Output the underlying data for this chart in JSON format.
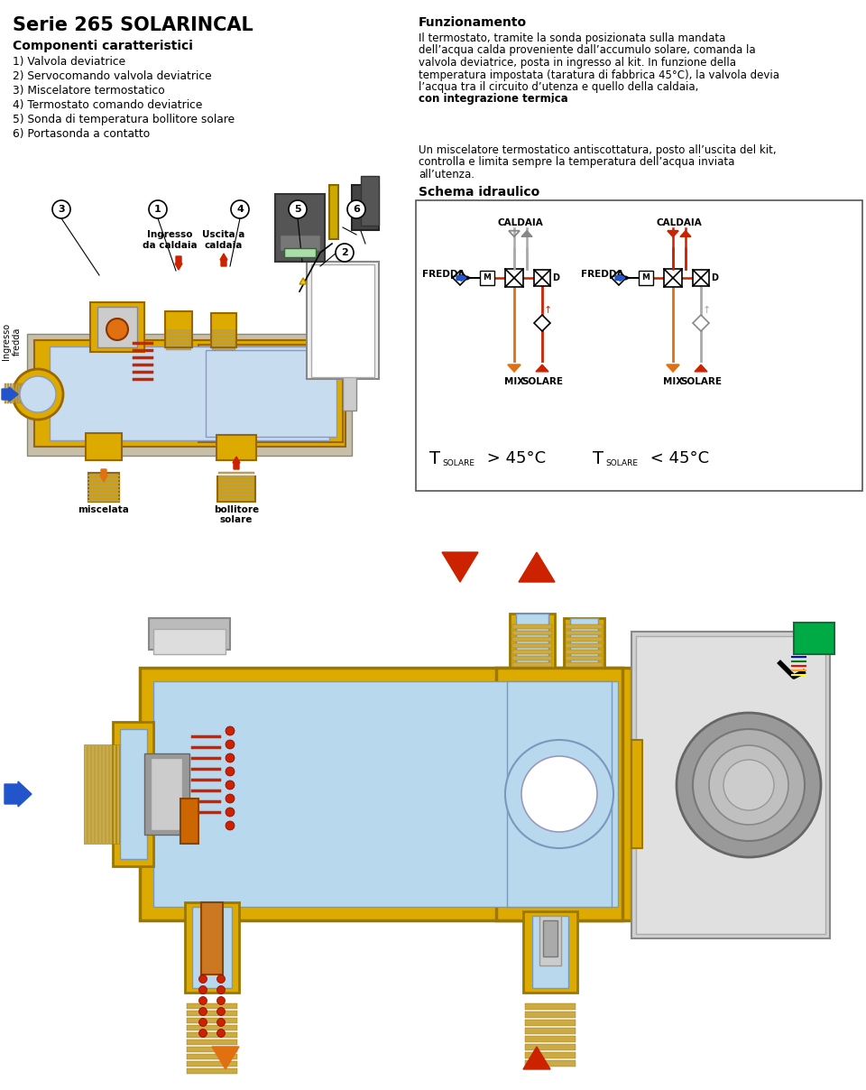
{
  "title": "Serie 265 SOLARINCAL",
  "section1_title": "Componenti caratteristici",
  "components": [
    "1) Valvola deviatrice",
    "2) Servocomando valvola deviatrice",
    "3) Miscelatore termostatico",
    "4) Termostato comando deviatrice",
    "5) Sonda di temperatura bollitore solare",
    "6) Portasonda a contatto"
  ],
  "section2_title": "Funzionamento",
  "funz_lines": [
    "Il termostato, tramite la sonda posizionata sulla mandata",
    "dell’acqua calda proveniente dall’accumulo solare, comanda la",
    "valvola deviatrice, posta in ingresso al kit. In funzione della",
    "temperatura impostata (taratura di fabbrica 45°C), la valvola devia",
    "l’acqua tra il circuito d’utenza e quello della caldaia, "
  ],
  "funz_bold": "con integrazione termica",
  "funz_text3_lines": [
    "Un miscelatore termostatico antiscottatura, posto all’uscita del kit,",
    "controlla e limita sempre la temperatura dell’acqua inviata",
    "all’utenza."
  ],
  "schema_title": "Schema idraulico",
  "label_caldaia": "CALDAIA",
  "label_fredda": "FREDDA",
  "label_mix": "MIX",
  "label_solare": "SOLARE",
  "temp1_op": " > 45°C",
  "temp2_op": " < 45°C",
  "bg_color": "#ffffff",
  "red": "#cc2200",
  "orange": "#e07010",
  "blue": "#2255cc",
  "gray": "#888888",
  "gray_light": "#aaaaaa",
  "yellow": "#ddaa00",
  "yellow_light": "#eecc44",
  "light_blue_fill": "#c8dcf0",
  "white_blue": "#ddeeff"
}
